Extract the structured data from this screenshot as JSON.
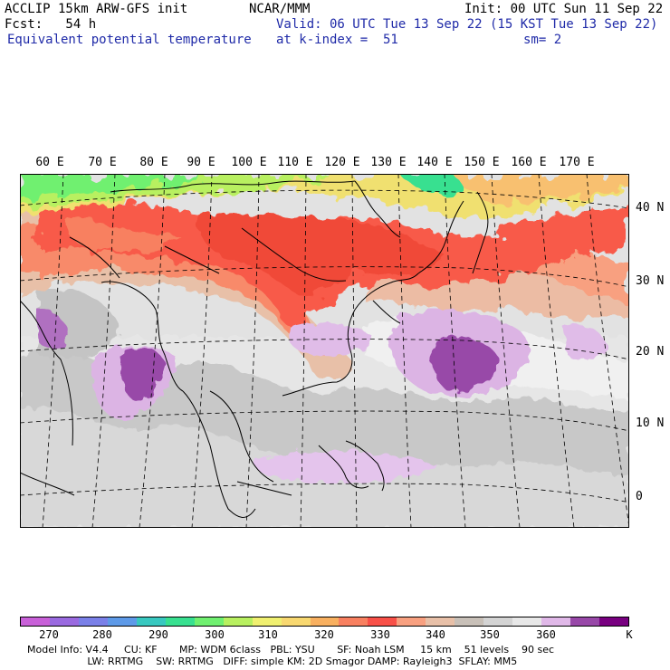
{
  "header": {
    "line1_left": "ACCLIP 15km ARW-GFS init",
    "line1_center": "NCAR/MMM",
    "line1_right": "Init: 00 UTC Sun 11 Sep 22",
    "line2_left": "Fcst:   54 h",
    "line2_right": "Valid: 06 UTC Tue 13 Sep 22 (15 KST Tue 13 Sep 22)",
    "line3_left": "Equivalent potential temperature",
    "line3_center": "at k-index =  51",
    "line3_right": "sm= 2"
  },
  "map": {
    "lon_labels": [
      "60 E",
      "70 E",
      "80 E",
      "90 E",
      "100 E",
      "110 E",
      "120 E",
      "130 E",
      "140 E",
      "150 E",
      "160 E",
      "170 E"
    ],
    "lat_labels": [
      "40 N",
      "30 N",
      "20 N",
      "10 N",
      "0"
    ]
  },
  "colorbar": {
    "unit": "K",
    "tick_labels": [
      "270",
      "280",
      "290",
      "300",
      "310",
      "320",
      "330",
      "340",
      "350",
      "360"
    ],
    "colors": [
      "#c860d8",
      "#9a6ae0",
      "#7a80e8",
      "#5e9ae8",
      "#38c8c0",
      "#38e090",
      "#70f070",
      "#b8f060",
      "#f0f070",
      "#f8d870",
      "#f8b060",
      "#f88060",
      "#f85048",
      "#f8a080",
      "#e8c0a8",
      "#c8c0b8",
      "#d4d4d4",
      "#e8e8e8",
      "#e0b8e8",
      "#9848a8",
      "#780080"
    ]
  },
  "footer": {
    "line1": "Model Info: V4.4     CU: KF       MP: WDM 6class   PBL: YSU       SF: Noah LSM     15 km    51 levels    90 sec",
    "line2": "                   LW: RRTMG    SW: RRTMG   DIFF: simple KM: 2D Smagor DAMP: Rayleigh3  SFLAY: MM5"
  }
}
